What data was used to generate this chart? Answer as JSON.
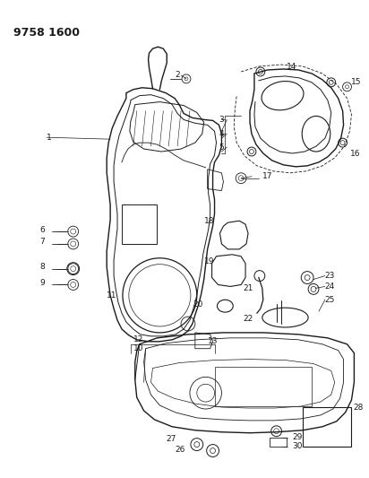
{
  "title": "9758 1600",
  "bg": "#ffffff",
  "lc": "#1a1a1a",
  "tc": "#1a1a1a",
  "lfs": 6.5,
  "fig_w": 4.12,
  "fig_h": 5.33,
  "dpi": 100
}
